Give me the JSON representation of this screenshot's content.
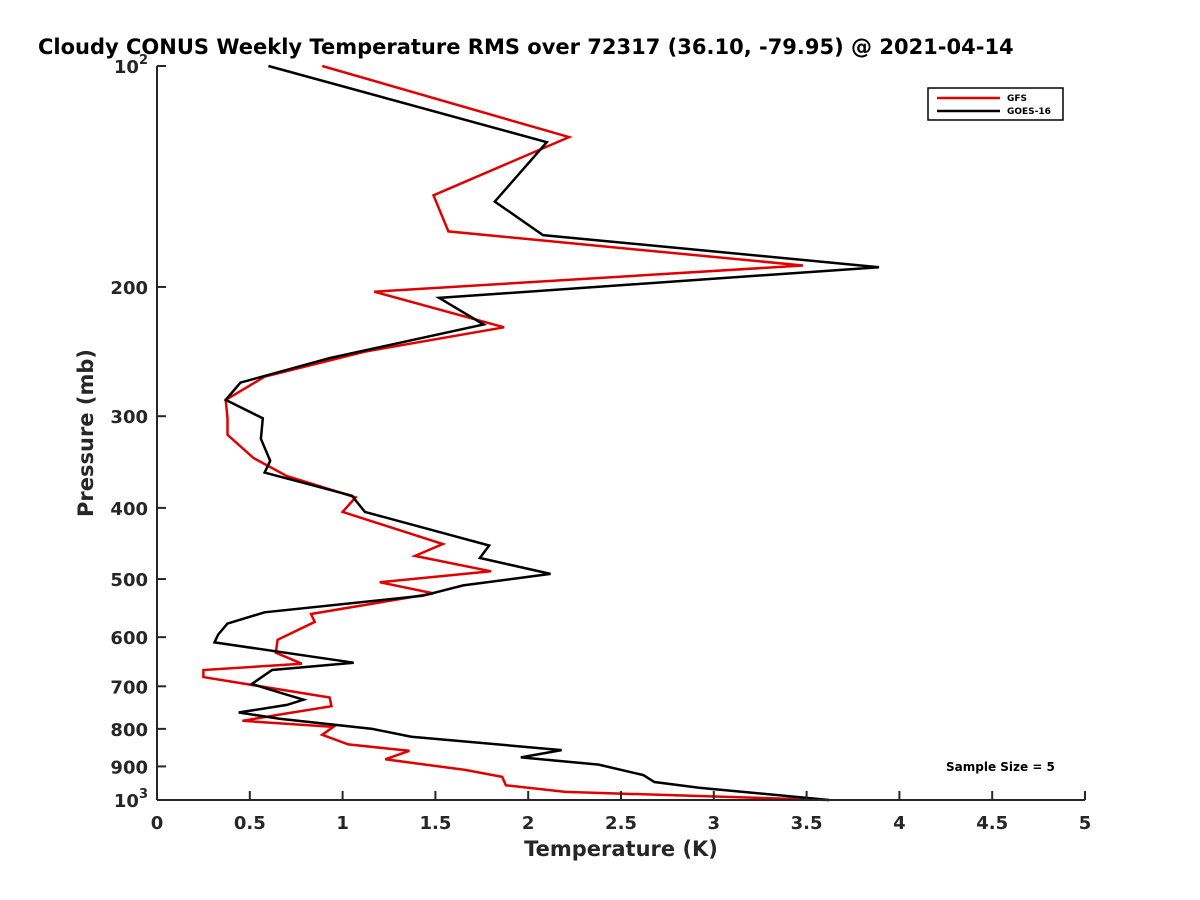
{
  "chart_data": {
    "type": "line",
    "title": "Cloudy CONUS Weekly Temperature RMS over 72317 (36.10, -79.95) @ 2021-04-14",
    "xlabel": "Temperature (K)",
    "ylabel": "Pressure (mb)",
    "xlim": [
      0,
      5
    ],
    "ylim": [
      100,
      1000
    ],
    "y_scale": "log",
    "y_reversed": true,
    "x_ticks": [
      {
        "value": 0,
        "label": "0"
      },
      {
        "value": 0.5,
        "label": "0.5"
      },
      {
        "value": 1,
        "label": "1"
      },
      {
        "value": 1.5,
        "label": "1.5"
      },
      {
        "value": 2,
        "label": "2"
      },
      {
        "value": 2.5,
        "label": "2.5"
      },
      {
        "value": 3,
        "label": "3"
      },
      {
        "value": 3.5,
        "label": "3.5"
      },
      {
        "value": 4,
        "label": "4"
      },
      {
        "value": 4.5,
        "label": "4.5"
      },
      {
        "value": 5,
        "label": "5"
      }
    ],
    "y_ticks": [
      {
        "value": 100,
        "base": "10",
        "exp": "2"
      },
      {
        "value": 200,
        "base": "200",
        "exp": ""
      },
      {
        "value": 300,
        "base": "300",
        "exp": ""
      },
      {
        "value": 400,
        "base": "400",
        "exp": ""
      },
      {
        "value": 500,
        "base": "500",
        "exp": ""
      },
      {
        "value": 600,
        "base": "600",
        "exp": ""
      },
      {
        "value": 700,
        "base": "700",
        "exp": ""
      },
      {
        "value": 800,
        "base": "800",
        "exp": ""
      },
      {
        "value": 900,
        "base": "900",
        "exp": ""
      },
      {
        "value": 1000,
        "base": "10",
        "exp": "3"
      }
    ],
    "grid": false,
    "legend_position": "top-right",
    "series": [
      {
        "name": "GFS",
        "color": "#e00000",
        "points": [
          [
            0.89,
            100
          ],
          [
            2.22,
            125
          ],
          [
            1.49,
            150
          ],
          [
            1.57,
            168
          ],
          [
            3.48,
            187
          ],
          [
            1.17,
            203
          ],
          [
            1.87,
            227
          ],
          [
            1.12,
            245
          ],
          [
            0.58,
            265
          ],
          [
            0.37,
            285
          ],
          [
            0.38,
            302
          ],
          [
            0.38,
            318
          ],
          [
            0.52,
            342
          ],
          [
            0.7,
            362
          ],
          [
            1.07,
            387
          ],
          [
            1.0,
            405
          ],
          [
            1.54,
            448
          ],
          [
            1.39,
            465
          ],
          [
            1.8,
            488
          ],
          [
            1.2,
            505
          ],
          [
            1.49,
            523
          ],
          [
            0.83,
            558
          ],
          [
            0.85,
            572
          ],
          [
            0.74,
            590
          ],
          [
            0.65,
            605
          ],
          [
            0.64,
            630
          ],
          [
            0.78,
            652
          ],
          [
            0.25,
            665
          ],
          [
            0.25,
            680
          ],
          [
            0.93,
            725
          ],
          [
            0.94,
            745
          ],
          [
            0.7,
            762
          ],
          [
            0.46,
            780
          ],
          [
            0.95,
            795
          ],
          [
            0.89,
            815
          ],
          [
            1.03,
            840
          ],
          [
            1.36,
            857
          ],
          [
            1.23,
            880
          ],
          [
            1.66,
            910
          ],
          [
            1.86,
            930
          ],
          [
            1.88,
            955
          ],
          [
            2.2,
            975
          ],
          [
            3.62,
            1000
          ]
        ]
      },
      {
        "name": "GOES-16",
        "color": "#000000",
        "points": [
          [
            0.6,
            100
          ],
          [
            2.1,
            127
          ],
          [
            1.82,
            153
          ],
          [
            2.08,
            170
          ],
          [
            3.89,
            188
          ],
          [
            1.52,
            207
          ],
          [
            1.76,
            225
          ],
          [
            0.93,
            250
          ],
          [
            0.45,
            270
          ],
          [
            0.37,
            285
          ],
          [
            0.57,
            302
          ],
          [
            0.56,
            322
          ],
          [
            0.61,
            345
          ],
          [
            0.58,
            358
          ],
          [
            1.05,
            385
          ],
          [
            1.12,
            405
          ],
          [
            1.79,
            450
          ],
          [
            1.74,
            468
          ],
          [
            2.12,
            492
          ],
          [
            1.65,
            510
          ],
          [
            1.43,
            527
          ],
          [
            0.58,
            555
          ],
          [
            0.38,
            575
          ],
          [
            0.33,
            595
          ],
          [
            0.31,
            610
          ],
          [
            1.06,
            650
          ],
          [
            0.62,
            665
          ],
          [
            0.51,
            695
          ],
          [
            0.71,
            720
          ],
          [
            0.79,
            730
          ],
          [
            0.7,
            742
          ],
          [
            0.44,
            760
          ],
          [
            0.66,
            775
          ],
          [
            1.16,
            800
          ],
          [
            1.37,
            820
          ],
          [
            2.18,
            855
          ],
          [
            1.96,
            875
          ],
          [
            2.38,
            895
          ],
          [
            2.62,
            925
          ],
          [
            2.68,
            945
          ],
          [
            2.92,
            962
          ],
          [
            3.62,
            1000
          ]
        ]
      }
    ],
    "annotation": "Sample Size = 5"
  }
}
